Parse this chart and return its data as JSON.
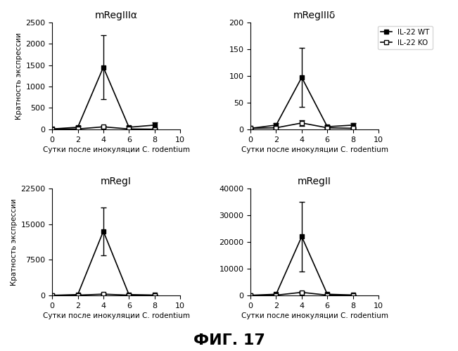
{
  "panels": [
    {
      "title": "mRegIIIα",
      "wt_x": [
        0,
        2,
        4,
        6,
        8
      ],
      "wt_y": [
        10,
        50,
        1450,
        50,
        100
      ],
      "wt_yerr": [
        5,
        30,
        750,
        30,
        60
      ],
      "ko_x": [
        0,
        2,
        4,
        6,
        8
      ],
      "ko_y": [
        5,
        10,
        60,
        10,
        5
      ],
      "ko_yerr": [
        3,
        5,
        20,
        5,
        3
      ],
      "ylim": [
        0,
        2500
      ],
      "yticks": [
        0,
        500,
        1000,
        1500,
        2000,
        2500
      ]
    },
    {
      "title": "mRegIIIδ",
      "wt_x": [
        0,
        2,
        4,
        6,
        8
      ],
      "wt_y": [
        2,
        8,
        97,
        5,
        8
      ],
      "wt_yerr": [
        1,
        4,
        55,
        3,
        4
      ],
      "ko_x": [
        0,
        2,
        4,
        6,
        8
      ],
      "ko_y": [
        2,
        3,
        12,
        3,
        2
      ],
      "ko_yerr": [
        1,
        2,
        5,
        2,
        1
      ],
      "ylim": [
        0,
        200
      ],
      "yticks": [
        0,
        50,
        100,
        150,
        200
      ]
    },
    {
      "title": "mRegI",
      "wt_x": [
        0,
        2,
        4,
        6,
        8
      ],
      "wt_y": [
        50,
        200,
        13500,
        200,
        100
      ],
      "wt_yerr": [
        20,
        100,
        5000,
        100,
        50
      ],
      "ko_x": [
        0,
        2,
        4,
        6,
        8
      ],
      "ko_y": [
        30,
        80,
        300,
        80,
        50
      ],
      "ko_yerr": [
        15,
        40,
        100,
        40,
        25
      ],
      "ylim": [
        0,
        22500
      ],
      "yticks": [
        0,
        7500,
        15000,
        22500
      ]
    },
    {
      "title": "mRegII",
      "wt_x": [
        0,
        2,
        4,
        6,
        8
      ],
      "wt_y": [
        100,
        500,
        22000,
        500,
        200
      ],
      "wt_yerr": [
        50,
        200,
        13000,
        200,
        100
      ],
      "ko_x": [
        0,
        2,
        4,
        6,
        8
      ],
      "ko_y": [
        50,
        150,
        1200,
        150,
        100
      ],
      "ko_yerr": [
        25,
        75,
        400,
        75,
        50
      ],
      "ylim": [
        0,
        40000
      ],
      "yticks": [
        0,
        10000,
        20000,
        30000,
        40000
      ]
    }
  ],
  "xlabel": "Сутки после инокуляции C. rodentium",
  "ylabel": "Кратность экспрессии",
  "xlim": [
    0,
    10
  ],
  "xticks": [
    0,
    2,
    4,
    6,
    8,
    10
  ],
  "figure_title": "ФИГ. 17",
  "legend_wt": "IL-22 WT",
  "legend_ko": "IL-22 KO",
  "color_wt": "#000000",
  "color_ko": "#000000",
  "bg_color": "#ffffff"
}
